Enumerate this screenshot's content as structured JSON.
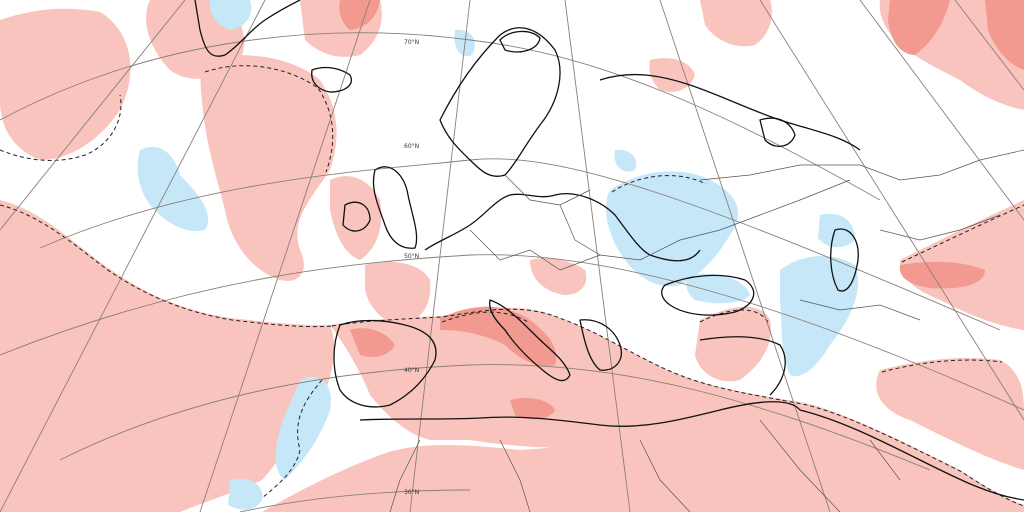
{
  "map": {
    "colors": {
      "warm_anomaly": "#f9c4bd",
      "warm_strong": "#f29a90",
      "cool_anomaly": "#c6e7f8",
      "background": "#ffffff",
      "graticule": "#8a7f78",
      "coastline": "#111111"
    },
    "latitude_labels": [
      "70°N",
      "60°N",
      "50°N",
      "40°N",
      "30°N"
    ]
  }
}
